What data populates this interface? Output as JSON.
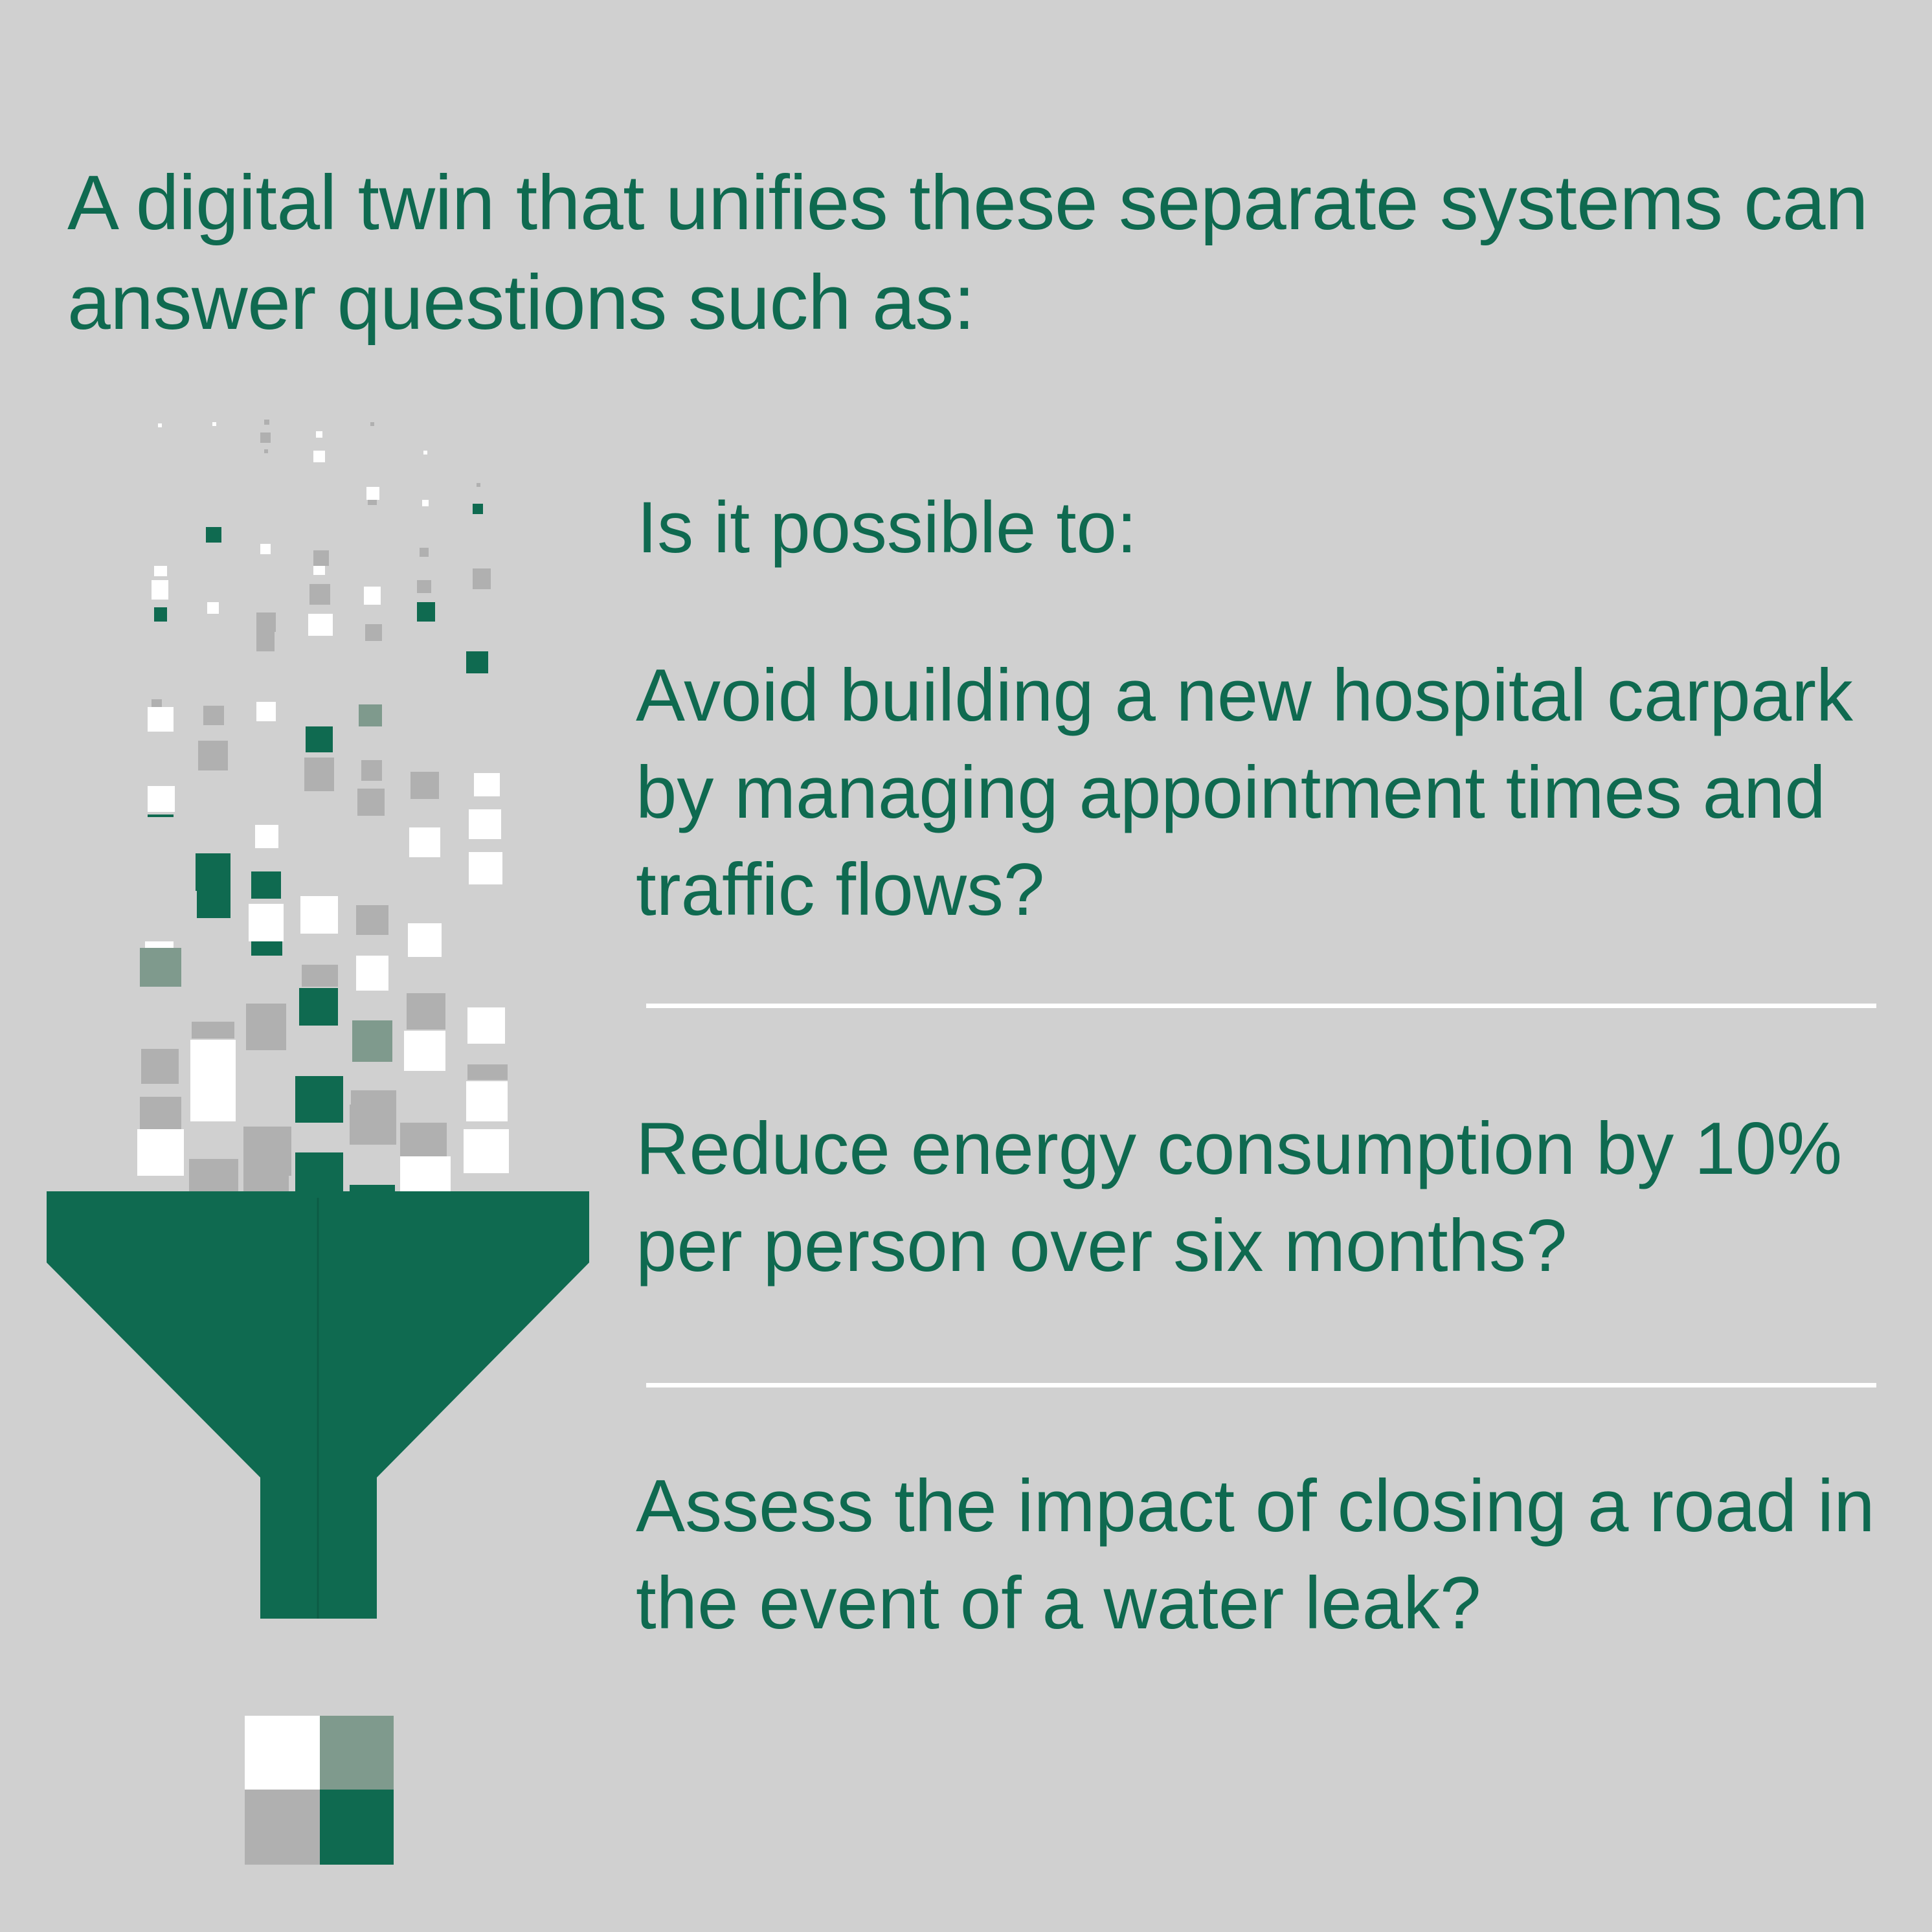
{
  "headline": "A digital twin that unifies these separate systems can answer questions such as:",
  "lead": "Is it possible to:",
  "questions": [
    "Avoid building a new hospital carpark by managing appointment times and traffic flows?",
    "Reduce energy consumption by 10% per person over six months?",
    "Assess the impact of closing a road in the event of a water leak?"
  ],
  "colors": {
    "background": "#d0d0d0",
    "green": "#0f6a50",
    "muted_green": "#7f9a8d",
    "grey": "#b0b0b0",
    "white": "#ffffff"
  },
  "graphic": {
    "icon": "funnel-icon",
    "description_icons": [
      "data-square-icon"
    ]
  }
}
